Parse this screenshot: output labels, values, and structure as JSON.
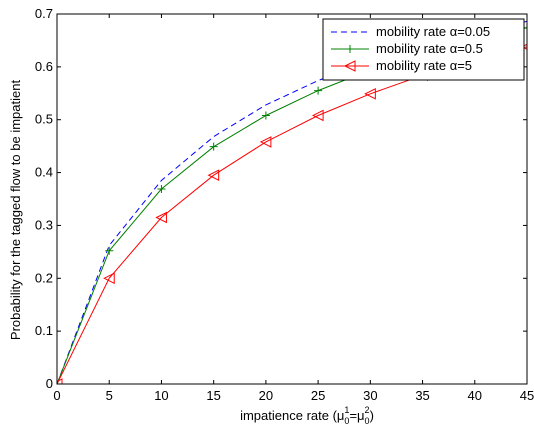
{
  "chart_data": {
    "type": "line",
    "title": "",
    "xlabel": "impatience rate (μ",
    "xlabel_parts": {
      "pre": "impatience rate (μ",
      "sup1": "1",
      "sub1": "0",
      "eq": "=μ",
      "sup2": "2",
      "sub2": "0",
      "post": ")"
    },
    "ylabel": "Probability for the tagged flow to be impatient",
    "xlim": [
      0,
      45
    ],
    "ylim": [
      0,
      0.7
    ],
    "xticks": [
      0,
      5,
      10,
      15,
      20,
      25,
      30,
      35,
      40,
      45
    ],
    "yticks": [
      0,
      0.1,
      0.2,
      0.3,
      0.4,
      0.5,
      0.6,
      0.7
    ],
    "grid": false,
    "legend_position": "top-right",
    "x": [
      0,
      5,
      10,
      15,
      20,
      25,
      30,
      35,
      40,
      45
    ],
    "series": [
      {
        "name": "mobility rate α=0.05",
        "color": "#0000ff",
        "style": "dashed",
        "marker": "none",
        "values": [
          0.0,
          0.262,
          0.385,
          0.468,
          0.528,
          0.574,
          0.611,
          0.641,
          0.665,
          0.686
        ]
      },
      {
        "name": "mobility rate α=0.5",
        "color": "#008000",
        "style": "solid",
        "marker": "plus",
        "values": [
          0.0,
          0.252,
          0.369,
          0.449,
          0.508,
          0.555,
          0.594,
          0.626,
          0.652,
          0.674
        ]
      },
      {
        "name": "mobility rate α=5",
        "color": "#ff0000",
        "style": "solid",
        "marker": "triangle-left",
        "values": [
          0.0,
          0.2,
          0.315,
          0.395,
          0.458,
          0.508,
          0.549,
          0.584,
          0.613,
          0.638
        ]
      }
    ]
  }
}
